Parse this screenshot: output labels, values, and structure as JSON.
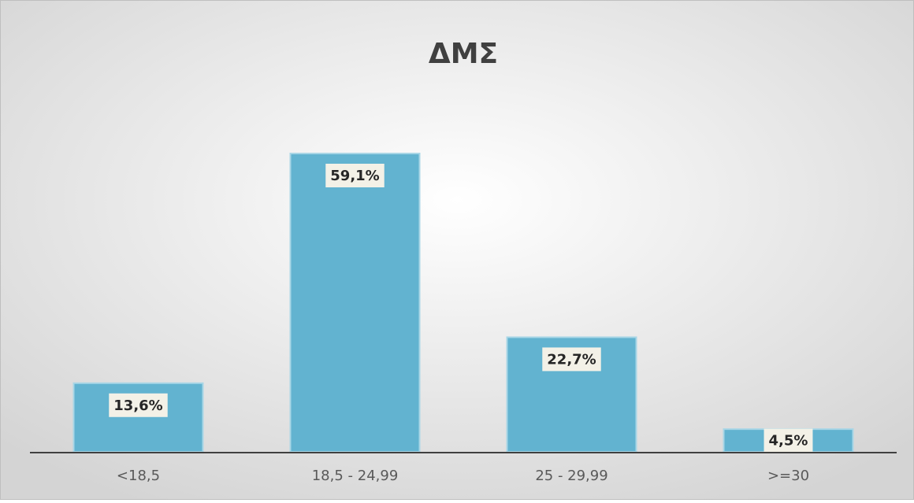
{
  "chart_data": {
    "type": "bar",
    "title": "ΔΜΣ",
    "categories": [
      "<18,5",
      "18,5 - 24,99",
      "25 - 29,99",
      ">=30"
    ],
    "values": [
      13.6,
      59.1,
      22.7,
      4.5
    ],
    "value_labels": [
      "13,6%",
      "59,1%",
      "22,7%",
      "4,5%"
    ],
    "color": "#62b3d0"
  }
}
